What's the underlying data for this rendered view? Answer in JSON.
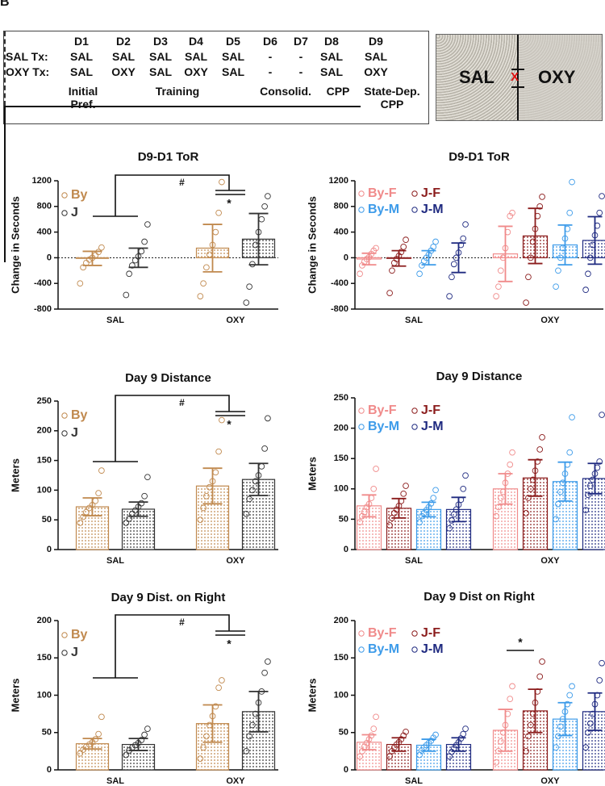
{
  "panel_label": "B",
  "schedule": {
    "days": [
      "D1",
      "D2",
      "D3",
      "D4",
      "D5",
      "D6",
      "D7",
      "D8",
      "D9"
    ],
    "rows": [
      {
        "label": "SAL Tx:",
        "cells": [
          "SAL",
          "SAL",
          "SAL",
          "SAL",
          "SAL",
          "-",
          "-",
          "SAL",
          "SAL"
        ]
      },
      {
        "label": "OXY Tx:",
        "cells": [
          "SAL",
          "OXY",
          "SAL",
          "OXY",
          "SAL",
          "-",
          "-",
          "SAL",
          "OXY"
        ]
      }
    ],
    "phases": [
      "Initial Pref.",
      "Training",
      "Consolid.",
      "CPP",
      "State-Dep. CPP"
    ]
  },
  "apparatus": {
    "left": "SAL",
    "marker": "X",
    "right": "OXY"
  },
  "chart_data": [
    {
      "type": "bar",
      "title": "D9-D1 ToR",
      "y_label": "Change in Seconds",
      "categories": [
        "SAL",
        "OXY"
      ],
      "ylim": [
        -800,
        1200
      ],
      "yticks": [
        -800,
        -400,
        0,
        400,
        800,
        1200
      ],
      "zero_line": true,
      "annotations": [
        "#",
        "*"
      ],
      "series": [
        {
          "name": "By",
          "color": "#c0894e",
          "values": [
            -10,
            150
          ],
          "errors": [
            110,
            370
          ],
          "points": [
            [
              -400,
              -150,
              -80,
              -30,
              0,
              40,
              90,
              160
            ],
            [
              -600,
              -400,
              -150,
              50,
              200,
              400,
              700,
              1180
            ]
          ]
        },
        {
          "name": "J",
          "color": "#333333",
          "values": [
            0,
            290
          ],
          "errors": [
            150,
            400
          ],
          "points": [
            [
              -580,
              -250,
              -120,
              -40,
              20,
              100,
              250,
              520
            ],
            [
              -700,
              -450,
              -100,
              200,
              400,
              600,
              800,
              960
            ]
          ]
        }
      ]
    },
    {
      "type": "bar",
      "title": "Day 9 Distance",
      "y_label": "Meters",
      "categories": [
        "SAL",
        "OXY"
      ],
      "ylim": [
        0,
        250
      ],
      "yticks": [
        0,
        50,
        100,
        150,
        200,
        250
      ],
      "annotations": [
        "#",
        "*"
      ],
      "series": [
        {
          "name": "By",
          "color": "#c0894e",
          "values": [
            72,
            107
          ],
          "errors": [
            15,
            30
          ],
          "points": [
            [
              45,
              55,
              63,
              70,
              75,
              82,
              95,
              133
            ],
            [
              50,
              70,
              90,
              105,
              115,
              130,
              165,
              218
            ]
          ]
        },
        {
          "name": "J",
          "color": "#333333",
          "values": [
            68,
            118
          ],
          "errors": [
            12,
            27
          ],
          "points": [
            [
              45,
              52,
              60,
              66,
              72,
              78,
              90,
              122
            ],
            [
              60,
              85,
              100,
              115,
              125,
              140,
              170,
              221
            ]
          ]
        }
      ]
    },
    {
      "type": "bar",
      "title": "Day 9 Dist. on Right",
      "y_label": "Meters",
      "categories": [
        "SAL",
        "OXY"
      ],
      "ylim": [
        0,
        200
      ],
      "yticks": [
        0,
        50,
        100,
        150,
        200
      ],
      "annotations": [
        "#",
        "*"
      ],
      "series": [
        {
          "name": "By",
          "color": "#c0894e",
          "values": [
            35,
            62
          ],
          "errors": [
            7,
            25
          ],
          "points": [
            [
              22,
              27,
              31,
              34,
              37,
              41,
              48,
              71
            ],
            [
              15,
              30,
              45,
              60,
              72,
              85,
              110,
              120
            ]
          ]
        },
        {
          "name": "J",
          "color": "#333333",
          "values": [
            34,
            78
          ],
          "errors": [
            8,
            27
          ],
          "points": [
            [
              20,
              26,
              30,
              33,
              36,
              40,
              47,
              55
            ],
            [
              25,
              45,
              60,
              75,
              90,
              105,
              130,
              145
            ]
          ]
        }
      ]
    },
    {
      "type": "bar",
      "title": "D9-D1 ToR",
      "y_label": "Change in Seconds",
      "categories": [
        "SAL",
        "OXY"
      ],
      "ylim": [
        -800,
        1200
      ],
      "yticks": [
        -800,
        -400,
        0,
        400,
        800,
        1200
      ],
      "zero_line": true,
      "series": [
        {
          "name": "By-F",
          "color": "#f08a8a",
          "values": [
            -20,
            60
          ],
          "errors": [
            90,
            430
          ],
          "points": [
            [
              -250,
              -120,
              -60,
              -20,
              10,
              60,
              110,
              150
            ],
            [
              -600,
              -450,
              -200,
              0,
              150,
              400,
              650,
              700
            ]
          ]
        },
        {
          "name": "J-F",
          "color": "#8b1c1c",
          "values": [
            -10,
            340
          ],
          "errors": [
            120,
            430
          ],
          "points": [
            [
              -550,
              -200,
              -80,
              -20,
              30,
              90,
              170,
              280
            ],
            [
              -700,
              -300,
              0,
              250,
              450,
              650,
              800,
              950
            ]
          ]
        },
        {
          "name": "By-M",
          "color": "#3d9be9",
          "values": [
            0,
            200
          ],
          "errors": [
            110,
            310
          ],
          "points": [
            [
              -250,
              -120,
              -50,
              0,
              50,
              110,
              170,
              250
            ],
            [
              -450,
              -200,
              0,
              150,
              300,
              450,
              700,
              1180
            ]
          ]
        },
        {
          "name": "J-M",
          "color": "#1f2a80",
          "values": [
            0,
            270
          ],
          "errors": [
            230,
            370
          ],
          "points": [
            [
              -600,
              -300,
              -100,
              0,
              80,
              200,
              300,
              520
            ],
            [
              -500,
              -250,
              0,
              200,
              350,
              500,
              700,
              960
            ]
          ]
        }
      ]
    },
    {
      "type": "bar",
      "title": "Day 9 Distance",
      "y_label": "Meters",
      "categories": [
        "SAL",
        "OXY"
      ],
      "ylim": [
        0,
        250
      ],
      "yticks": [
        0,
        50,
        100,
        150,
        200,
        250
      ],
      "series": [
        {
          "name": "By-F",
          "color": "#f08a8a",
          "values": [
            72,
            100
          ],
          "errors": [
            18,
            25
          ],
          "points": [
            [
              45,
              55,
              62,
              70,
              75,
              85,
              100,
              133
            ],
            [
              55,
              70,
              85,
              95,
              110,
              125,
              140,
              160
            ]
          ]
        },
        {
          "name": "J-F",
          "color": "#8b1c1c",
          "values": [
            68,
            118
          ],
          "errors": [
            16,
            30
          ],
          "points": [
            [
              40,
              52,
              60,
              66,
              72,
              80,
              92,
              105
            ],
            [
              60,
              85,
              100,
              115,
              130,
              145,
              165,
              185
            ]
          ]
        },
        {
          "name": "By-M",
          "color": "#3d9be9",
          "values": [
            66,
            112
          ],
          "errors": [
            12,
            32
          ],
          "points": [
            [
              45,
              55,
              60,
              65,
              70,
              76,
              85,
              98
            ],
            [
              50,
              75,
              95,
              110,
              125,
              140,
              160,
              218
            ]
          ]
        },
        {
          "name": "J-M",
          "color": "#1f2a80",
          "values": [
            66,
            117
          ],
          "errors": [
            20,
            25
          ],
          "points": [
            [
              35,
              48,
              58,
              66,
              74,
              82,
              100,
              122
            ],
            [
              65,
              90,
              105,
              115,
              125,
              135,
              145,
              222
            ]
          ]
        }
      ]
    },
    {
      "type": "bar",
      "title": "Day 9 Dist on Right",
      "y_label": "Meters",
      "categories": [
        "SAL",
        "OXY"
      ],
      "ylim": [
        0,
        200
      ],
      "yticks": [
        0,
        50,
        100,
        150,
        200
      ],
      "annotations": [
        "*"
      ],
      "series": [
        {
          "name": "By-F",
          "color": "#f08a8a",
          "values": [
            37,
            53
          ],
          "errors": [
            10,
            28
          ],
          "points": [
            [
              18,
              25,
              31,
              36,
              41,
              46,
              55,
              71
            ],
            [
              10,
              25,
              38,
              50,
              60,
              75,
              95,
              112
            ]
          ]
        },
        {
          "name": "J-F",
          "color": "#8b1c1c",
          "values": [
            34,
            79
          ],
          "errors": [
            9,
            29
          ],
          "points": [
            [
              18,
              25,
              30,
              34,
              37,
              41,
              46,
              51
            ],
            [
              25,
              45,
              60,
              75,
              90,
              105,
              125,
              145
            ]
          ]
        },
        {
          "name": "By-M",
          "color": "#3d9be9",
          "values": [
            33,
            68
          ],
          "errors": [
            8,
            22
          ],
          "points": [
            [
              20,
              26,
              30,
              33,
              36,
              39,
              43,
              47
            ],
            [
              30,
              45,
              58,
              68,
              78,
              88,
              100,
              112
            ]
          ]
        },
        {
          "name": "J-M",
          "color": "#1f2a80",
          "values": [
            34,
            78
          ],
          "errors": [
            9,
            25
          ],
          "points": [
            [
              18,
              24,
              29,
              33,
              37,
              42,
              48,
              55
            ],
            [
              30,
              50,
              62,
              75,
              88,
              100,
              120,
              143
            ]
          ]
        }
      ]
    }
  ]
}
